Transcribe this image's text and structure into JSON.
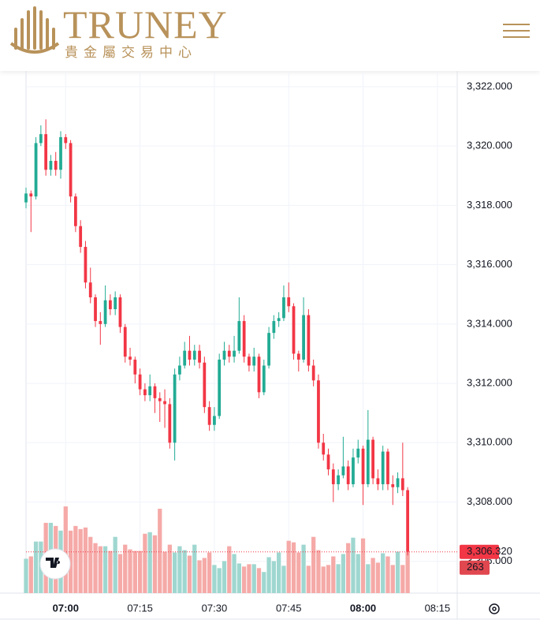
{
  "header": {
    "brand": "TRUNEY",
    "subtitle": "貴金屬交易中心"
  },
  "chart_data": {
    "type": "candlestick",
    "x": [
      "06:52",
      "06:53",
      "06:54",
      "06:55",
      "06:56",
      "06:57",
      "06:58",
      "06:59",
      "07:00",
      "07:01",
      "07:02",
      "07:03",
      "07:04",
      "07:05",
      "07:06",
      "07:07",
      "07:08",
      "07:09",
      "07:10",
      "07:11",
      "07:12",
      "07:13",
      "07:14",
      "07:15",
      "07:16",
      "07:17",
      "07:18",
      "07:19",
      "07:20",
      "07:21",
      "07:22",
      "07:23",
      "07:24",
      "07:25",
      "07:26",
      "07:27",
      "07:28",
      "07:29",
      "07:30",
      "07:31",
      "07:32",
      "07:33",
      "07:34",
      "07:35",
      "07:36",
      "07:37",
      "07:38",
      "07:39",
      "07:40",
      "07:41",
      "07:42",
      "07:43",
      "07:44",
      "07:45",
      "07:46",
      "07:47",
      "07:48",
      "07:49",
      "07:50",
      "07:51",
      "07:52",
      "07:53",
      "07:54",
      "07:55",
      "07:56",
      "07:57",
      "07:58",
      "07:59",
      "08:00",
      "08:01",
      "08:02",
      "08:03",
      "08:04",
      "08:05",
      "08:06",
      "08:07",
      "08:08",
      "08:09"
    ],
    "open": [
      3318.1,
      3318.4,
      3318.3,
      3320.1,
      3320.4,
      3319.2,
      3319.5,
      3319.2,
      3320.3,
      3320.1,
      3318.3,
      3317.3,
      3316.6,
      3315.4,
      3314.9,
      3314.1,
      3314.0,
      3314.8,
      3314.5,
      3314.9,
      3313.9,
      3312.9,
      3312.8,
      3312.3,
      3311.8,
      3311.6,
      3311.9,
      3311.5,
      3311.4,
      3311.3,
      3310.0,
      3312.3,
      3312.6,
      3313.1,
      3312.8,
      3313.1,
      3312.7,
      3311.2,
      3310.6,
      3310.9,
      3312.8,
      3313.1,
      3312.9,
      3313.1,
      3314.1,
      3312.9,
      3312.6,
      3312.9,
      3311.7,
      3312.6,
      3313.7,
      3314.1,
      3314.2,
      3314.9,
      3314.6,
      3313.0,
      3312.8,
      3314.3,
      3312.6,
      3312.1,
      3310.0,
      3309.6,
      3309.1,
      3308.6,
      3308.9,
      3309.2,
      3308.6,
      3309.5,
      3309.8,
      3308.6,
      3310.1,
      3308.8,
      3308.6,
      3309.7,
      3308.6,
      3308.5,
      3308.8,
      3308.4
    ],
    "high": [
      3318.6,
      3318.5,
      3320.3,
      3320.7,
      3320.9,
      3319.7,
      3319.8,
      3320.5,
      3320.4,
      3320.2,
      3318.4,
      3317.5,
      3316.8,
      3315.9,
      3315.0,
      3314.4,
      3315.3,
      3315.0,
      3315.1,
      3315.0,
      3314.0,
      3313.2,
      3312.9,
      3312.5,
      3312.0,
      3312.3,
      3312.0,
      3311.7,
      3311.8,
      3311.5,
      3312.5,
      3312.9,
      3313.4,
      3313.6,
      3313.3,
      3313.3,
      3312.9,
      3311.4,
      3311.2,
      3313.0,
      3313.4,
      3313.3,
      3313.6,
      3314.9,
      3314.3,
      3313.0,
      3313.2,
      3313.0,
      3312.8,
      3313.9,
      3314.3,
      3314.4,
      3315.3,
      3315.4,
      3314.7,
      3313.1,
      3314.9,
      3314.5,
      3312.8,
      3312.3,
      3310.3,
      3309.8,
      3309.3,
      3309.1,
      3310.2,
      3309.4,
      3309.8,
      3310.1,
      3309.9,
      3311.1,
      3310.2,
      3309.1,
      3309.9,
      3309.8,
      3308.9,
      3309.0,
      3310.0,
      3308.5
    ],
    "low": [
      3317.9,
      3317.1,
      3318.2,
      3320.0,
      3319.0,
      3319.0,
      3319.0,
      3318.9,
      3319.9,
      3318.1,
      3317.1,
      3316.4,
      3315.2,
      3314.7,
      3313.9,
      3313.3,
      3313.9,
      3314.3,
      3314.3,
      3313.7,
      3312.7,
      3312.6,
      3312.0,
      3311.6,
      3311.4,
      3311.4,
      3311.0,
      3310.7,
      3310.5,
      3309.8,
      3309.4,
      3312.1,
      3312.5,
      3312.6,
      3312.6,
      3312.5,
      3311.0,
      3310.4,
      3310.4,
      3310.8,
      3312.6,
      3312.7,
      3312.7,
      3313.0,
      3312.7,
      3312.4,
      3312.4,
      3311.5,
      3311.6,
      3312.5,
      3313.5,
      3313.9,
      3314.1,
      3314.4,
      3312.8,
      3312.4,
      3312.7,
      3312.4,
      3311.9,
      3309.8,
      3309.4,
      3308.9,
      3308.0,
      3308.4,
      3308.8,
      3308.4,
      3308.5,
      3309.3,
      3307.9,
      3308.5,
      3308.6,
      3308.4,
      3308.4,
      3308.4,
      3307.9,
      3308.3,
      3308.2,
      3306.2
    ],
    "close": [
      3318.4,
      3318.3,
      3320.1,
      3320.4,
      3319.2,
      3319.5,
      3319.2,
      3320.3,
      3320.1,
      3318.3,
      3317.3,
      3316.6,
      3315.4,
      3314.9,
      3314.1,
      3314.0,
      3314.8,
      3314.5,
      3314.9,
      3313.9,
      3312.9,
      3312.8,
      3312.3,
      3311.8,
      3311.6,
      3311.9,
      3311.5,
      3311.4,
      3311.3,
      3310.0,
      3312.3,
      3312.6,
      3313.1,
      3312.8,
      3313.1,
      3312.7,
      3311.2,
      3310.6,
      3310.9,
      3312.8,
      3313.1,
      3312.9,
      3313.1,
      3314.1,
      3312.9,
      3312.6,
      3312.9,
      3311.7,
      3312.6,
      3313.7,
      3314.1,
      3314.2,
      3314.9,
      3314.6,
      3313.0,
      3312.8,
      3314.3,
      3312.6,
      3312.1,
      3310.0,
      3309.6,
      3309.1,
      3308.6,
      3308.9,
      3309.2,
      3308.6,
      3309.5,
      3309.8,
      3308.6,
      3310.1,
      3308.8,
      3308.6,
      3309.7,
      3308.6,
      3308.5,
      3308.8,
      3308.4,
      3306.32
    ],
    "volume": [
      220,
      235,
      330,
      330,
      450,
      450,
      430,
      400,
      555,
      400,
      430,
      410,
      420,
      360,
      320,
      300,
      300,
      270,
      360,
      250,
      310,
      280,
      270,
      270,
      380,
      390,
      370,
      540,
      265,
      310,
      260,
      300,
      275,
      240,
      310,
      210,
      225,
      260,
      180,
      160,
      205,
      300,
      250,
      190,
      170,
      185,
      185,
      160,
      135,
      230,
      205,
      260,
      175,
      335,
      325,
      260,
      310,
      175,
      360,
      275,
      170,
      180,
      235,
      185,
      250,
      320,
      355,
      250,
      350,
      185,
      225,
      195,
      255,
      235,
      180,
      265,
      180,
      263
    ],
    "up_color": "#22ab94",
    "down_color": "#f23645",
    "volume_up_color": "#9fd7d0",
    "volume_down_color": "#f5aaa8",
    "volume_lim": [
      0,
      1000
    ],
    "ylim": [
      3304.93,
      3322.53
    ],
    "yticks": [
      {
        "value": 3306,
        "label": "3,306.000"
      },
      {
        "value": 3308,
        "label": "3,308.000"
      },
      {
        "value": 3310,
        "label": "3,310.000"
      },
      {
        "value": 3312,
        "label": "3,312.000"
      },
      {
        "value": 3314,
        "label": "3,314.000"
      },
      {
        "value": 3316,
        "label": "3,316.000"
      },
      {
        "value": 3318,
        "label": "3,318.000"
      },
      {
        "value": 3320,
        "label": "3,320.000"
      },
      {
        "value": 3322,
        "label": "3,322.000"
      }
    ],
    "xlim": [
      "06:52",
      "08:19"
    ],
    "xticks": [
      "07:00",
      "07:15",
      "07:30",
      "07:45",
      "08:00",
      "08:15"
    ],
    "grid": true,
    "last_price": {
      "value": 3306.32,
      "label": "3,306.320"
    }
  }
}
